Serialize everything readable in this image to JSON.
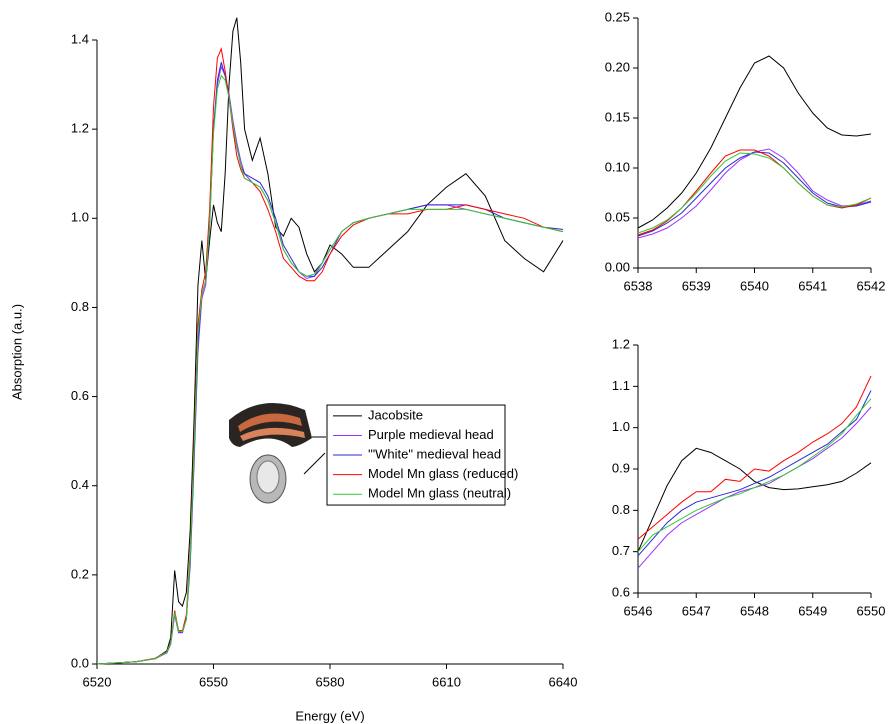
{
  "chart_data": [
    {
      "type": "line",
      "xlabel": "Energy (eV)",
      "ylabel": "Absorption (a.u.)",
      "x": [
        6520,
        6530,
        6535,
        6538,
        6539,
        6540,
        6541,
        6542,
        6543,
        6544,
        6545,
        6546,
        6547,
        6548,
        6549,
        6550,
        6551,
        6552,
        6553,
        6554,
        6555,
        6556,
        6557,
        6558,
        6560,
        6562,
        6564,
        6566,
        6568,
        6570,
        6572,
        6574,
        6576,
        6578,
        6580,
        6583,
        6586,
        6590,
        6595,
        6600,
        6605,
        6610,
        6615,
        6620,
        6625,
        6630,
        6635,
        6640
      ],
      "series": [
        {
          "name": "Jacobsite",
          "color": "#000000",
          "values": [
            0,
            0.005,
            0.012,
            0.03,
            0.06,
            0.21,
            0.14,
            0.13,
            0.16,
            0.3,
            0.55,
            0.85,
            0.95,
            0.86,
            0.95,
            1.03,
            0.99,
            0.97,
            1.1,
            1.3,
            1.42,
            1.45,
            1.35,
            1.2,
            1.13,
            1.18,
            1.1,
            0.98,
            0.96,
            1.0,
            0.98,
            0.92,
            0.88,
            0.9,
            0.94,
            0.92,
            0.89,
            0.89,
            0.93,
            0.97,
            1.03,
            1.07,
            1.1,
            1.05,
            0.95,
            0.91,
            0.88,
            0.95
          ]
        },
        {
          "name": "Purple medieval head",
          "color": "#9933ff",
          "values": [
            0,
            0.005,
            0.012,
            0.025,
            0.045,
            0.11,
            0.07,
            0.07,
            0.1,
            0.22,
            0.45,
            0.7,
            0.82,
            0.85,
            0.98,
            1.2,
            1.3,
            1.34,
            1.32,
            1.28,
            1.22,
            1.17,
            1.13,
            1.1,
            1.08,
            1.07,
            1.04,
            0.99,
            0.93,
            0.9,
            0.88,
            0.865,
            0.87,
            0.9,
            0.93,
            0.97,
            0.99,
            1.0,
            1.01,
            1.02,
            1.03,
            1.03,
            1.02,
            1.01,
            1.0,
            0.99,
            0.98,
            0.97
          ]
        },
        {
          "name": "'\"White\" medieval head",
          "color": "#2a2ad0",
          "values": [
            0,
            0.005,
            0.012,
            0.026,
            0.047,
            0.115,
            0.072,
            0.072,
            0.1,
            0.23,
            0.46,
            0.72,
            0.83,
            0.86,
            0.99,
            1.2,
            1.31,
            1.35,
            1.32,
            1.27,
            1.21,
            1.16,
            1.12,
            1.1,
            1.09,
            1.08,
            1.05,
            1.0,
            0.94,
            0.91,
            0.88,
            0.87,
            0.87,
            0.89,
            0.92,
            0.97,
            0.99,
            1.0,
            1.01,
            1.02,
            1.03,
            1.03,
            1.03,
            1.02,
            1.0,
            0.99,
            0.98,
            0.975
          ]
        },
        {
          "name": "Model Mn glass (reduced)",
          "color": "#ff0000",
          "values": [
            0,
            0.005,
            0.013,
            0.028,
            0.05,
            0.12,
            0.075,
            0.075,
            0.11,
            0.25,
            0.5,
            0.76,
            0.84,
            0.88,
            1.02,
            1.25,
            1.36,
            1.38,
            1.33,
            1.27,
            1.2,
            1.14,
            1.11,
            1.09,
            1.08,
            1.06,
            1.02,
            0.97,
            0.91,
            0.89,
            0.87,
            0.86,
            0.86,
            0.88,
            0.92,
            0.96,
            0.985,
            1.0,
            1.01,
            1.01,
            1.02,
            1.02,
            1.03,
            1.02,
            1.01,
            1.0,
            0.98,
            0.97
          ]
        },
        {
          "name": "Model Mn glass (neutral)",
          "color": "#33cc33",
          "values": [
            0,
            0.005,
            0.012,
            0.027,
            0.048,
            0.115,
            0.073,
            0.073,
            0.1,
            0.24,
            0.48,
            0.74,
            0.83,
            0.86,
            0.99,
            1.19,
            1.29,
            1.32,
            1.31,
            1.27,
            1.21,
            1.16,
            1.12,
            1.09,
            1.08,
            1.07,
            1.04,
            0.99,
            0.93,
            0.9,
            0.88,
            0.87,
            0.875,
            0.9,
            0.93,
            0.97,
            0.99,
            1.0,
            1.01,
            1.02,
            1.02,
            1.02,
            1.02,
            1.01,
            1.0,
            0.99,
            0.98,
            0.97
          ]
        }
      ],
      "xlim": [
        6520,
        6640
      ],
      "ylim": [
        0,
        1.4
      ],
      "xticks": [
        6520,
        6550,
        6580,
        6610,
        6640
      ],
      "yticks": [
        {
          "value": 0,
          "label": "0.0"
        },
        0.2,
        0.4,
        0.6,
        0.8,
        {
          "value": 1,
          "label": "1.0"
        },
        1.2,
        1.4
      ],
      "legend": "center-right"
    },
    {
      "type": "line",
      "x": [
        6538,
        6538.25,
        6538.5,
        6538.75,
        6539,
        6539.25,
        6539.5,
        6539.75,
        6540,
        6540.25,
        6540.5,
        6540.75,
        6541,
        6541.25,
        6541.5,
        6541.75,
        6542
      ],
      "series": [
        {
          "color": "#000000",
          "values": [
            0.04,
            0.048,
            0.06,
            0.075,
            0.095,
            0.12,
            0.15,
            0.18,
            0.205,
            0.212,
            0.2,
            0.175,
            0.155,
            0.14,
            0.133,
            0.132,
            0.134
          ]
        },
        {
          "color": "#9933ff",
          "values": [
            0.03,
            0.034,
            0.04,
            0.05,
            0.062,
            0.078,
            0.095,
            0.108,
            0.116,
            0.119,
            0.11,
            0.095,
            0.077,
            0.068,
            0.062,
            0.063,
            0.067
          ]
        },
        {
          "color": "#2a2ad0",
          "values": [
            0.032,
            0.037,
            0.045,
            0.055,
            0.07,
            0.085,
            0.1,
            0.11,
            0.116,
            0.115,
            0.105,
            0.09,
            0.075,
            0.065,
            0.061,
            0.062,
            0.066
          ]
        },
        {
          "color": "#ff0000",
          "values": [
            0.033,
            0.038,
            0.047,
            0.06,
            0.077,
            0.095,
            0.112,
            0.118,
            0.118,
            0.112,
            0.1,
            0.085,
            0.072,
            0.063,
            0.06,
            0.063,
            0.07
          ]
        },
        {
          "color": "#33cc33",
          "values": [
            0.035,
            0.04,
            0.048,
            0.06,
            0.075,
            0.092,
            0.107,
            0.115,
            0.114,
            0.11,
            0.1,
            0.085,
            0.072,
            0.063,
            0.061,
            0.064,
            0.07
          ]
        }
      ],
      "xlim": [
        6538,
        6542
      ],
      "ylim": [
        0,
        0.25
      ],
      "xticks": [
        6538,
        6539,
        6540,
        6541,
        6542
      ],
      "yticks": [
        {
          "value": 0,
          "label": "0.00"
        },
        0.05,
        {
          "value": 0.1,
          "label": "0.10"
        },
        0.15,
        {
          "value": 0.2,
          "label": "0.20"
        },
        0.25
      ]
    },
    {
      "type": "line",
      "x": [
        6546,
        6546.25,
        6546.5,
        6546.75,
        6547,
        6547.25,
        6547.5,
        6547.75,
        6548,
        6548.25,
        6548.5,
        6548.75,
        6549,
        6549.25,
        6549.5,
        6549.75,
        6550
      ],
      "series": [
        {
          "color": "#000000",
          "values": [
            0.7,
            0.78,
            0.86,
            0.92,
            0.95,
            0.94,
            0.92,
            0.9,
            0.87,
            0.855,
            0.85,
            0.852,
            0.857,
            0.862,
            0.87,
            0.89,
            0.915
          ]
        },
        {
          "color": "#9933ff",
          "values": [
            0.66,
            0.7,
            0.74,
            0.77,
            0.79,
            0.81,
            0.83,
            0.845,
            0.855,
            0.865,
            0.885,
            0.905,
            0.925,
            0.95,
            0.975,
            1.01,
            1.05
          ]
        },
        {
          "color": "#2a2ad0",
          "values": [
            0.69,
            0.73,
            0.77,
            0.8,
            0.82,
            0.83,
            0.84,
            0.85,
            0.865,
            0.88,
            0.9,
            0.92,
            0.94,
            0.96,
            0.99,
            1.02,
            1.09
          ]
        },
        {
          "color": "#ff0000",
          "values": [
            0.73,
            0.76,
            0.79,
            0.82,
            0.845,
            0.845,
            0.875,
            0.87,
            0.9,
            0.895,
            0.92,
            0.94,
            0.965,
            0.985,
            1.01,
            1.05,
            1.125
          ]
        },
        {
          "color": "#33cc33",
          "values": [
            0.7,
            0.74,
            0.76,
            0.78,
            0.8,
            0.815,
            0.83,
            0.84,
            0.855,
            0.87,
            0.885,
            0.905,
            0.93,
            0.955,
            0.985,
            1.03,
            1.07
          ]
        }
      ],
      "xlim": [
        6546,
        6550
      ],
      "ylim": [
        0.6,
        1.2
      ],
      "xticks": [
        6546,
        6547,
        6548,
        6549,
        6550
      ],
      "yticks": [
        0.6,
        0.7,
        0.8,
        0.9,
        {
          "value": 1,
          "label": "1.0"
        },
        1.1,
        1.2
      ]
    }
  ]
}
